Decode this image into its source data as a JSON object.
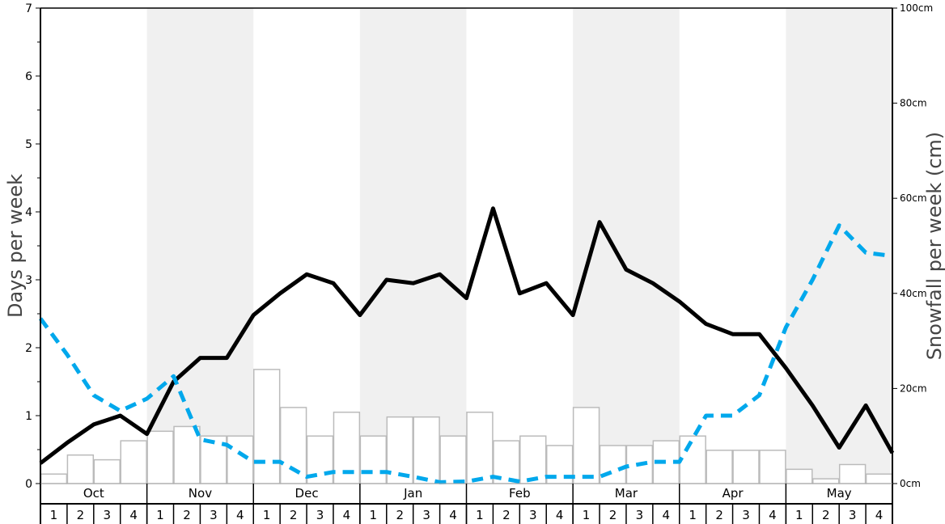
{
  "chart_data": {
    "type": "bar+line",
    "ylabel_left": "Days per week",
    "ylabel_right": "Snowfall per week (cm)",
    "ylim_left": [
      0,
      7
    ],
    "ylim_right": [
      0,
      100
    ],
    "left_ticks": [
      "0",
      "1",
      "2",
      "3",
      "4",
      "5",
      "6",
      "7"
    ],
    "right_ticks": [
      "0cm",
      "20cm",
      "40cm",
      "60cm",
      "80cm",
      "100cm"
    ],
    "months": [
      "Oct",
      "Nov",
      "Dec",
      "Jan",
      "Feb",
      "Mar",
      "Apr",
      "May"
    ],
    "weeks": [
      "1",
      "2",
      "3",
      "4"
    ],
    "shaded_months": [
      "Nov",
      "Jan",
      "Mar",
      "May"
    ],
    "bars_snowfall_cm": [
      2,
      6,
      5,
      9,
      11,
      12,
      10,
      10,
      24,
      16,
      10,
      15,
      10,
      14,
      14,
      10,
      15,
      9,
      10,
      8,
      16,
      8,
      8,
      9,
      10,
      7,
      7,
      7,
      3,
      1,
      4,
      2
    ],
    "series": [
      {
        "color": "#000000",
        "style": "solid",
        "axis": "left",
        "values": [
          0.3,
          0.6,
          0.87,
          1.0,
          0.73,
          1.5,
          1.85,
          1.85,
          2.48,
          2.8,
          3.08,
          2.95,
          2.48,
          3.0,
          2.95,
          3.08,
          2.73,
          4.05,
          2.8,
          2.95,
          2.48,
          3.85,
          3.15,
          2.95,
          2.68,
          2.35,
          2.2,
          2.2,
          1.7,
          1.15,
          0.53,
          1.15,
          0.45
        ]
      },
      {
        "color": "#00a8ec",
        "style": "dashed",
        "axis": "left",
        "values": [
          2.43,
          1.9,
          1.3,
          1.07,
          1.25,
          1.58,
          0.65,
          0.57,
          0.32,
          0.32,
          0.1,
          0.17,
          0.17,
          0.17,
          0.1,
          0.02,
          0.03,
          0.1,
          0.03,
          0.1,
          0.1,
          0.1,
          0.25,
          0.32,
          0.32,
          1.0,
          1.0,
          1.3,
          2.3,
          3.0,
          3.8,
          3.4,
          3.35
        ]
      }
    ]
  }
}
